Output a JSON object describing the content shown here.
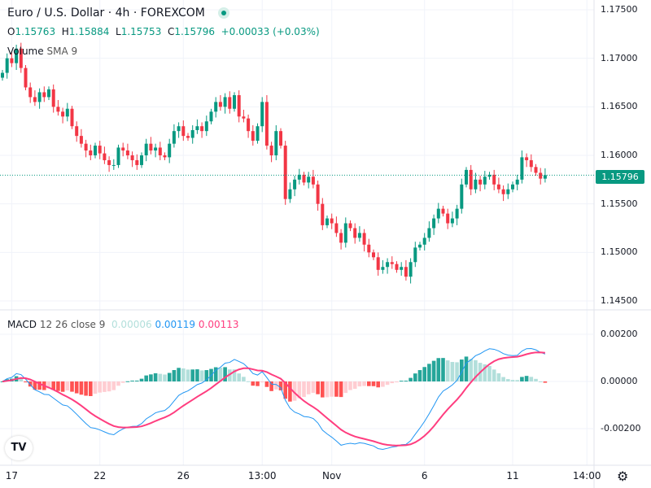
{
  "header": {
    "title": "Euro / U.S. Dollar · 4h · FOREXCOM",
    "status_color": "#089981",
    "ohlc": {
      "o_label": "O",
      "o": "1.15763",
      "h_label": "H",
      "h": "1.15884",
      "l_label": "L",
      "l": "1.15753",
      "c_label": "C",
      "c": "1.15796",
      "change": "+0.00033 (+0.03%)"
    },
    "volume_label": "Volume",
    "volume_sma": "SMA 9"
  },
  "macd_legend": {
    "label": "MACD",
    "params": "12 26 close 9",
    "hist": "0.00006",
    "macd": "0.00119",
    "signal": "0.00113"
  },
  "colors": {
    "up": "#089981",
    "down": "#f23645",
    "macd": "#2196f3",
    "signal": "#ff3d7f",
    "hist_up_strong": "#26a69a",
    "hist_up_weak": "#b2dfdb",
    "hist_down_strong": "#ff5252",
    "hist_down_weak": "#ffcdd2"
  },
  "last_price": "1.15796",
  "chart_data": {
    "type": "candlestick",
    "title": "Euro / U.S. Dollar · 4h · FOREXCOM",
    "ylim": [
      1.145,
      1.175
    ],
    "price_ticks": [
      "1.17500",
      "1.17000",
      "1.16500",
      "1.16000",
      "1.15500",
      "1.15000",
      "1.14500"
    ],
    "macd_ylim": [
      -0.0027,
      0.0024
    ],
    "macd_ticks": [
      "0.00200",
      "0.00000",
      "-0.00200"
    ],
    "time_ticks": [
      {
        "label": "17",
        "index": 2
      },
      {
        "label": "22",
        "index": 21
      },
      {
        "label": "26",
        "index": 39
      },
      {
        "label": "13:00",
        "index": 56
      },
      {
        "label": "Nov",
        "index": 71
      },
      {
        "label": "6",
        "index": 91
      },
      {
        "label": "11",
        "index": 110
      },
      {
        "label": "14:00",
        "index": 126
      }
    ],
    "closes": [
      1.1685,
      1.17,
      1.1695,
      1.171,
      1.169,
      1.167,
      1.166,
      1.1655,
      1.1665,
      1.166,
      1.1668,
      1.165,
      1.1645,
      1.164,
      1.1648,
      1.163,
      1.162,
      1.1612,
      1.1605,
      1.16,
      1.161,
      1.1602,
      1.1595,
      1.159,
      1.159,
      1.1608,
      1.1605,
      1.16,
      1.1595,
      1.159,
      1.16,
      1.1612,
      1.1605,
      1.1608,
      1.16,
      1.1598,
      1.1612,
      1.1625,
      1.163,
      1.162,
      1.1618,
      1.1626,
      1.163,
      1.1625,
      1.1635,
      1.1645,
      1.1655,
      1.165,
      1.166,
      1.1648,
      1.1662,
      1.164,
      1.1638,
      1.1625,
      1.1615,
      1.163,
      1.1655,
      1.161,
      1.16,
      1.1625,
      1.161,
      1.1555,
      1.1565,
      1.1575,
      1.158,
      1.1572,
      1.1578,
      1.157,
      1.155,
      1.1528,
      1.1535,
      1.153,
      1.152,
      1.151,
      1.153,
      1.1525,
      1.1515,
      1.152,
      1.1508,
      1.15,
      1.1495,
      1.1482,
      1.1485,
      1.149,
      1.1488,
      1.1482,
      1.1485,
      1.1475,
      1.149,
      1.1505,
      1.1508,
      1.1515,
      1.1525,
      1.1535,
      1.1545,
      1.154,
      1.153,
      1.1535,
      1.1545,
      1.157,
      1.1585,
      1.1565,
      1.1575,
      1.157,
      1.1578,
      1.158,
      1.157,
      1.1565,
      1.156,
      1.1565,
      1.157,
      1.1575,
      1.1598,
      1.1595,
      1.1588,
      1.1582,
      1.1576,
      1.15796
    ]
  },
  "footer": {
    "logo": "TV",
    "settings_icon": "gear-icon"
  }
}
